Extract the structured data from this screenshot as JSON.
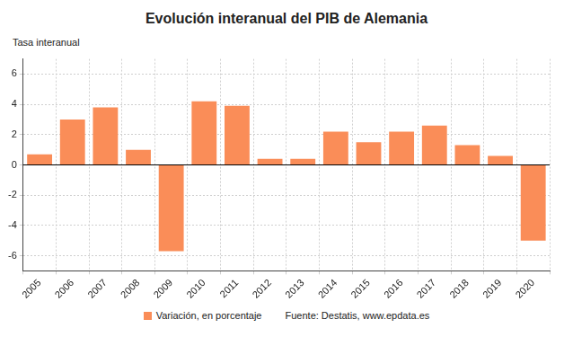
{
  "chart_data": {
    "type": "bar",
    "title": "Evolución interanual del PIB de Alemania",
    "y_label": "Tasa interanual",
    "source": "Fuente: Destatis, www.epdata.es",
    "categories": [
      "2005",
      "2006",
      "2007",
      "2008",
      "2009",
      "2010",
      "2011",
      "2012",
      "2013",
      "2014",
      "2015",
      "2016",
      "2017",
      "2018",
      "2019",
      "2020"
    ],
    "series": [
      {
        "name": "Variación, en porcentaje",
        "color": "#fa8d58",
        "values": [
          0.7,
          3.0,
          3.8,
          1.0,
          -5.7,
          4.2,
          3.9,
          0.4,
          0.4,
          2.2,
          1.5,
          2.2,
          2.6,
          1.3,
          0.6,
          -5.0
        ]
      }
    ],
    "ylim": [
      -7,
      7
    ],
    "yticks": [
      -6,
      -4,
      -2,
      0,
      2,
      4,
      6
    ],
    "grid": true,
    "legend": "bottom"
  }
}
